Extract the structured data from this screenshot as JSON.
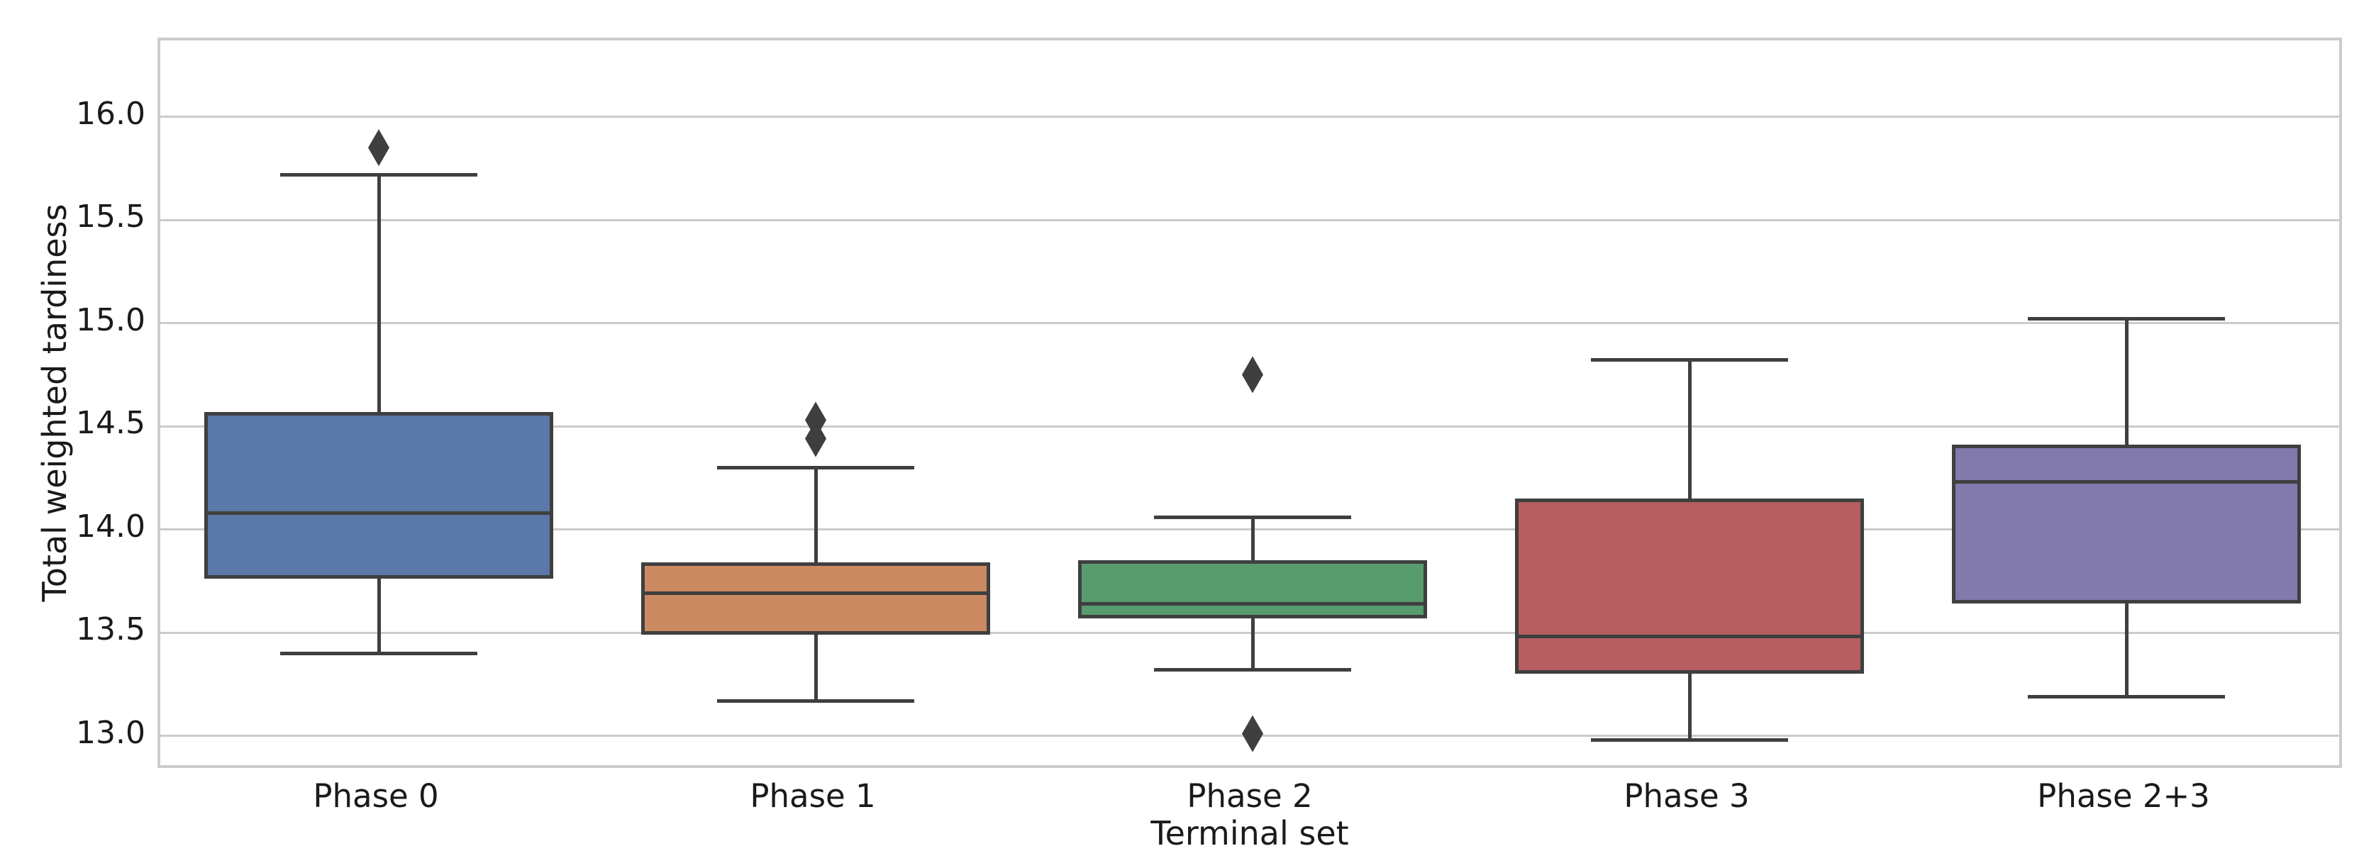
{
  "chart_data": {
    "type": "boxplot",
    "title": "",
    "xlabel": "Terminal set",
    "ylabel": "Total weighted tardiness",
    "categories": [
      "Phase 0",
      "Phase 1",
      "Phase 2",
      "Phase 3",
      "Phase 2+3"
    ],
    "ylim": [
      12.83,
      16.37
    ],
    "yticks": [
      13.0,
      13.5,
      14.0,
      14.5,
      15.0,
      15.5,
      16.0
    ],
    "ytick_labels": [
      "13.0",
      "13.5",
      "14.0",
      "14.5",
      "15.0",
      "15.5",
      "16.0"
    ],
    "grid": "horizontal",
    "legend": "none",
    "series": [
      {
        "name": "Phase 0",
        "color": "#5a78a8",
        "whisker_low": 13.4,
        "q1": 13.76,
        "median": 14.08,
        "q3": 14.57,
        "whisker_high": 15.72,
        "outliers": [
          15.85
        ]
      },
      {
        "name": "Phase 1",
        "color": "#cc8a62",
        "whisker_low": 13.17,
        "q1": 13.49,
        "median": 13.69,
        "q3": 13.84,
        "whisker_high": 14.3,
        "outliers": [
          14.44,
          14.53
        ]
      },
      {
        "name": "Phase 2",
        "color": "#589c6d",
        "whisker_low": 13.32,
        "q1": 13.57,
        "median": 13.64,
        "q3": 13.85,
        "whisker_high": 14.06,
        "outliers": [
          13.01,
          14.75
        ]
      },
      {
        "name": "Phase 3",
        "color": "#b55d5f",
        "whisker_low": 12.98,
        "q1": 13.3,
        "median": 13.48,
        "q3": 14.15,
        "whisker_high": 14.82,
        "outliers": []
      },
      {
        "name": "Phase 2+3",
        "color": "#8279ad",
        "whisker_low": 13.19,
        "q1": 13.64,
        "median": 14.23,
        "q3": 14.41,
        "whisker_high": 15.02,
        "outliers": []
      }
    ],
    "colors": {
      "mark_edge": "#3f3f3f",
      "grid": "#cbcbcb",
      "frame": "#cccccc",
      "text": "#1a1a1a",
      "background": "#ffffff"
    }
  }
}
